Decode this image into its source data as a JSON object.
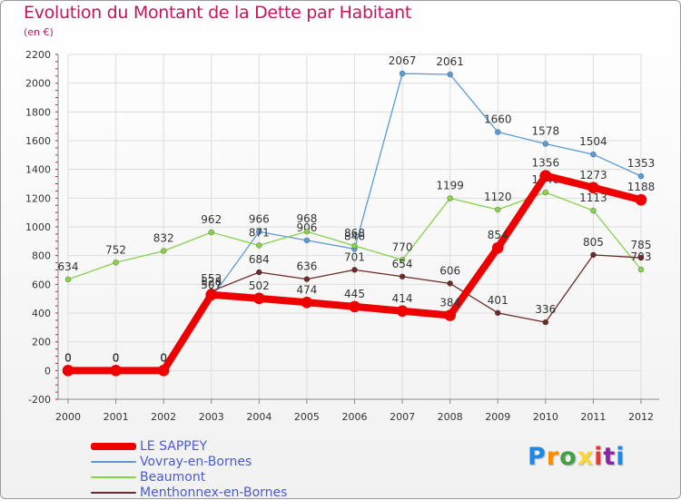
{
  "title": "Evolution du Montant de la Dette par Habitant",
  "subtitle": "(en €)",
  "logo_text": "Proxiti",
  "logo_colors": [
    "#1e88e5",
    "#fb8c00",
    "#43a047",
    "#fdd835",
    "#e53935",
    "#8e24aa",
    "#1e88e5"
  ],
  "colors": {
    "title": "#c2185b",
    "legend_text": "#4a5bd0",
    "grid": "#dddddd"
  },
  "chart_data": {
    "type": "line",
    "title": "Evolution du Montant de la Dette par Habitant",
    "subtitle": "(en €)",
    "categories": [
      "2000",
      "2001",
      "2002",
      "2003",
      "2004",
      "2005",
      "2006",
      "2007",
      "2008",
      "2009",
      "2010",
      "2011",
      "2012"
    ],
    "ylim": [
      -200,
      2200
    ],
    "yticks": [
      -200,
      0,
      200,
      400,
      600,
      800,
      1000,
      1200,
      1400,
      1600,
      1800,
      2000,
      2200
    ],
    "grid": true,
    "legend_position": "bottom-left",
    "series": [
      {
        "name": "Vovray-en-Bornes",
        "color": "#5b9bd5",
        "width": 1.3,
        "marker_r": 3,
        "values": [
          0,
          0,
          0,
          507,
          966,
          906,
          846,
          2067,
          2061,
          1660,
          1578,
          1504,
          1353
        ]
      },
      {
        "name": "Beaumont",
        "color": "#88d14b",
        "width": 1.3,
        "marker_r": 3,
        "values": [
          634,
          752,
          832,
          962,
          871,
          968,
          868,
          770,
          1199,
          1120,
          1240,
          1113,
          703
        ]
      },
      {
        "name": "Menthonnex-en-Bornes",
        "color": "#6d2a2a",
        "width": 1.3,
        "marker_r": 3,
        "values": [
          0,
          0,
          0,
          552,
          684,
          636,
          701,
          654,
          606,
          401,
          336,
          805,
          785
        ]
      },
      {
        "name": "LE SAPPEY",
        "color": "#ee0000",
        "width": 8,
        "marker_r": 6,
        "values": [
          0,
          0,
          0,
          528,
          502,
          474,
          445,
          414,
          384,
          854,
          1356,
          1273,
          1188
        ]
      }
    ]
  }
}
